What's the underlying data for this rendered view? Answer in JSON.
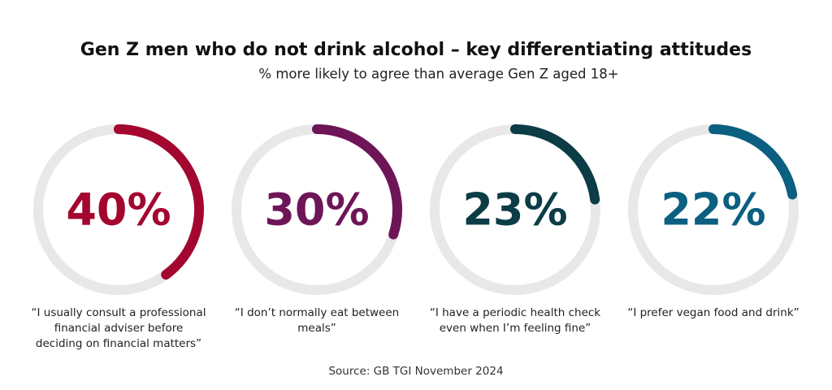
{
  "chart_data": {
    "type": "radial",
    "title": "Gen Z men who do not drink alcohol – key differentiating attitudes",
    "subtitle": "% more likely to agree than average Gen Z aged 18+",
    "categories": [
      "“I usually consult a professional financial adviser before deciding on financial matters”",
      "“I don’t normally eat between meals”",
      "“I have a periodic health check even when I’m feeling fine”",
      "“I prefer vegan food and drink”"
    ],
    "values": [
      40,
      30,
      23,
      22
    ],
    "value_labels": [
      "40%",
      "30%",
      "23%",
      "22%"
    ],
    "colors": [
      "#a3072f",
      "#6e1558",
      "#0c3c46",
      "#0b5f80"
    ],
    "ylim": [
      0,
      100
    ],
    "track_color": "#e8e8e8",
    "source": "Source: GB TGI November 2024"
  }
}
